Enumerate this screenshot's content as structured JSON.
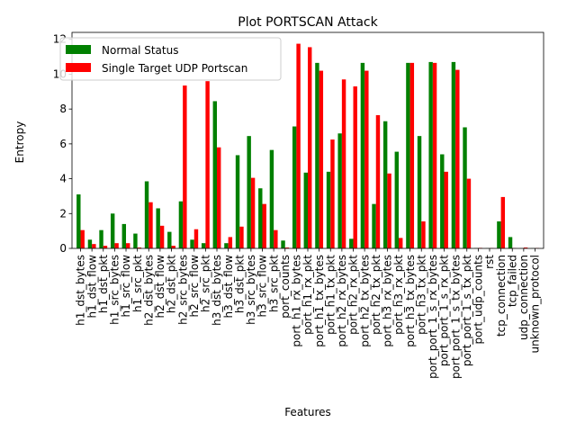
{
  "chart_data": {
    "type": "bar",
    "title": "Plot PORTSCAN Attack",
    "xlabel": "Features",
    "ylabel": "Entropy",
    "ylim": [
      0,
      12.4
    ],
    "yticks": [
      0,
      2,
      4,
      6,
      8,
      10,
      12
    ],
    "legend_position": "top-left",
    "grid": false,
    "categories": [
      "h1_dst_bytes",
      "h1_dst_flow",
      "h1_dst_pkt",
      "h1_src_bytes",
      "h1_src_flow",
      "h1_src_pkt",
      "h2_dst_bytes",
      "h2_dst_flow",
      "h2_dst_pkt",
      "h2_src_bytes",
      "h2_src_flow",
      "h2_src_pkt",
      "h3_dst_bytes",
      "h3_dst_flow",
      "h3_dst_pkt",
      "h3_src_bytes",
      "h3_src_flow",
      "h3_src_pkt",
      "port_counts",
      "port_h1_rx_bytes",
      "port_h1_rx_pkt",
      "port_h1_tx_bytes",
      "port_h1_tx_pkt",
      "port_h2_rx_bytes",
      "port_h2_rx_pkt",
      "port_h2_tx_bytes",
      "port_h2_tx_pkt",
      "port_h3_rx_bytes",
      "port_h3_rx_pkt",
      "port_h3_tx_bytes",
      "port_h3_tx_pkt",
      "port_port_1_s_rx_bytes",
      "port_port_1_s_rx_pkt",
      "port_port_1_s_tx_bytes",
      "port_port_1_s_tx_pkt",
      "port_udp_counts",
      "rst",
      "tcp_connection",
      "tcp_failed",
      "udp_connection",
      "unknown_protocol"
    ],
    "series": [
      {
        "name": "Normal Status",
        "color": "#008000",
        "values": [
          3.1,
          0.5,
          1.05,
          2.0,
          1.4,
          0.85,
          3.85,
          2.3,
          0.95,
          2.7,
          0.5,
          0.3,
          8.45,
          0.3,
          5.35,
          6.45,
          3.45,
          5.65,
          0.45,
          7.0,
          4.35,
          10.65,
          4.4,
          6.6,
          0.55,
          10.65,
          2.55,
          7.3,
          5.55,
          10.65,
          6.45,
          10.7,
          5.4,
          10.7,
          6.95,
          0.02,
          0.01,
          1.55,
          0.65,
          0.01,
          0.01
        ]
      },
      {
        "name": "Single Target UDP Portscan",
        "color": "#ff0000",
        "values": [
          1.05,
          0.25,
          0.15,
          0.3,
          0.3,
          0.05,
          2.65,
          1.3,
          0.15,
          9.35,
          1.1,
          9.6,
          5.8,
          0.65,
          1.25,
          4.05,
          2.55,
          1.05,
          0.05,
          11.75,
          11.55,
          10.2,
          6.25,
          9.7,
          9.3,
          10.2,
          7.65,
          4.3,
          0.6,
          10.65,
          1.55,
          10.65,
          4.4,
          10.25,
          4.0,
          0.03,
          0.02,
          2.95,
          0.02,
          0.05,
          0.02
        ]
      }
    ]
  }
}
